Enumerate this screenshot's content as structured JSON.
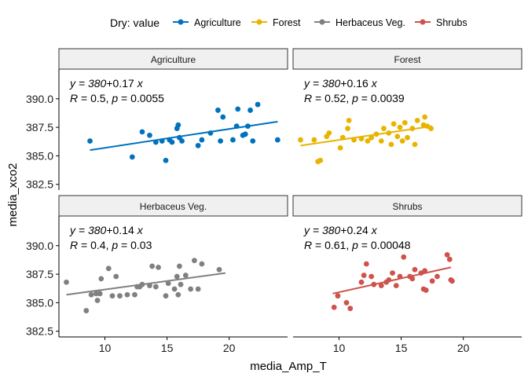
{
  "legend": {
    "title": "Dry: value",
    "placement": "top",
    "entries": [
      {
        "label": "Agriculture",
        "color": "#0072BD"
      },
      {
        "label": "Forest",
        "color": "#E8B400"
      },
      {
        "label": "Herbaceus Veg.",
        "color": "#808080"
      },
      {
        "label": "Shrubs",
        "color": "#CD534C"
      }
    ]
  },
  "chart_data": {
    "type": "scatter",
    "xlabel": "media_Amp_T",
    "ylabel": "media_xco2",
    "xlim": [
      6.3,
      24.7
    ],
    "ylim": [
      382.0,
      392.6
    ],
    "xticks": [
      "10",
      "15",
      "20"
    ],
    "yticks": [
      "382.5",
      "385.0",
      "387.5",
      "390.0"
    ],
    "grid": false,
    "facet_layout": "2x2",
    "facets": [
      {
        "name": "Agriculture",
        "color": "#0072BD",
        "equation": {
          "lead": "y = 380",
          "coef": "0.17",
          "var": "x"
        },
        "stats": {
          "r": "0.5",
          "p": "0.0055"
        },
        "fit": {
          "x": [
            8.8,
            23.9
          ],
          "y": [
            385.5,
            388.0
          ]
        },
        "points": [
          [
            8.8,
            386.3
          ],
          [
            12.2,
            384.9
          ],
          [
            13.0,
            387.1
          ],
          [
            13.6,
            386.8
          ],
          [
            14.1,
            386.2
          ],
          [
            14.6,
            386.3
          ],
          [
            14.9,
            384.6
          ],
          [
            15.2,
            386.4
          ],
          [
            15.4,
            386.2
          ],
          [
            15.8,
            387.4
          ],
          [
            15.9,
            387.7
          ],
          [
            16.0,
            386.6
          ],
          [
            16.2,
            386.3
          ],
          [
            17.5,
            385.9
          ],
          [
            17.8,
            386.4
          ],
          [
            18.5,
            387.0
          ],
          [
            19.1,
            389.0
          ],
          [
            19.3,
            386.3
          ],
          [
            19.5,
            388.4
          ],
          [
            20.3,
            386.4
          ],
          [
            20.6,
            387.6
          ],
          [
            20.7,
            389.1
          ],
          [
            21.1,
            386.8
          ],
          [
            21.3,
            386.9
          ],
          [
            21.5,
            387.6
          ],
          [
            21.7,
            389.0
          ],
          [
            21.9,
            386.3
          ],
          [
            22.3,
            389.5
          ],
          [
            23.9,
            386.4
          ]
        ]
      },
      {
        "name": "Forest",
        "color": "#E8B400",
        "equation": {
          "lead": "y = 380",
          "coef": "0.16",
          "var": "x"
        },
        "stats": {
          "r": "0.52",
          "p": "0.0039"
        },
        "fit": {
          "x": [
            6.9,
            17.5
          ],
          "y": [
            385.9,
            387.6
          ]
        },
        "points": [
          [
            6.9,
            386.4
          ],
          [
            8.0,
            386.4
          ],
          [
            8.3,
            384.5
          ],
          [
            8.5,
            384.6
          ],
          [
            9.0,
            386.7
          ],
          [
            9.2,
            387.0
          ],
          [
            10.1,
            385.7
          ],
          [
            10.3,
            386.6
          ],
          [
            10.7,
            387.4
          ],
          [
            10.8,
            388.1
          ],
          [
            11.2,
            386.4
          ],
          [
            11.8,
            386.5
          ],
          [
            12.3,
            386.3
          ],
          [
            12.6,
            386.6
          ],
          [
            13.0,
            386.9
          ],
          [
            13.4,
            386.3
          ],
          [
            13.6,
            387.4
          ],
          [
            14.0,
            387.0
          ],
          [
            14.2,
            386.0
          ],
          [
            14.4,
            387.8
          ],
          [
            14.7,
            386.7
          ],
          [
            14.9,
            387.5
          ],
          [
            15.1,
            386.3
          ],
          [
            15.3,
            387.9
          ],
          [
            15.5,
            386.6
          ],
          [
            15.9,
            387.4
          ],
          [
            16.1,
            386.0
          ],
          [
            16.3,
            388.1
          ],
          [
            16.8,
            387.7
          ],
          [
            16.9,
            388.4
          ],
          [
            17.1,
            387.6
          ],
          [
            17.4,
            387.4
          ]
        ]
      },
      {
        "name": "Herbaceus Veg.",
        "color": "#808080",
        "equation": {
          "lead": "y = 380",
          "coef": "0.14",
          "var": "x"
        },
        "stats": {
          "r": "0.4",
          "p": "0.03"
        },
        "fit": {
          "x": [
            6.9,
            19.7
          ],
          "y": [
            385.7,
            387.6
          ]
        },
        "points": [
          [
            6.9,
            386.8
          ],
          [
            8.5,
            384.3
          ],
          [
            8.9,
            385.7
          ],
          [
            9.3,
            385.8
          ],
          [
            9.4,
            385.2
          ],
          [
            9.6,
            385.8
          ],
          [
            9.7,
            387.1
          ],
          [
            10.3,
            388.0
          ],
          [
            10.6,
            385.6
          ],
          [
            10.9,
            387.3
          ],
          [
            11.2,
            385.6
          ],
          [
            11.8,
            385.7
          ],
          [
            12.4,
            385.7
          ],
          [
            12.6,
            386.4
          ],
          [
            12.8,
            386.4
          ],
          [
            13.0,
            386.6
          ],
          [
            13.6,
            386.5
          ],
          [
            13.8,
            388.2
          ],
          [
            14.1,
            386.4
          ],
          [
            14.3,
            388.1
          ],
          [
            14.9,
            385.6
          ],
          [
            15.1,
            386.7
          ],
          [
            15.6,
            386.2
          ],
          [
            15.8,
            387.3
          ],
          [
            15.9,
            385.7
          ],
          [
            16.0,
            388.2
          ],
          [
            16.1,
            386.6
          ],
          [
            16.5,
            387.4
          ],
          [
            16.9,
            386.2
          ],
          [
            17.2,
            388.7
          ],
          [
            17.5,
            386.2
          ],
          [
            17.8,
            388.4
          ],
          [
            19.2,
            387.9
          ]
        ]
      },
      {
        "name": "Shrubs",
        "color": "#CD534C",
        "equation": {
          "lead": "y = 380",
          "coef": "0.24",
          "var": "x"
        },
        "stats": {
          "r": "0.61",
          "p": "0.00048"
        },
        "fit": {
          "x": [
            9.5,
            19.0
          ],
          "y": [
            385.8,
            388.1
          ]
        },
        "points": [
          [
            9.6,
            384.6
          ],
          [
            9.9,
            385.6
          ],
          [
            10.6,
            385.0
          ],
          [
            10.9,
            384.5
          ],
          [
            11.8,
            386.8
          ],
          [
            12.0,
            387.4
          ],
          [
            12.2,
            388.4
          ],
          [
            12.6,
            387.3
          ],
          [
            12.8,
            386.6
          ],
          [
            13.4,
            386.5
          ],
          [
            13.8,
            386.8
          ],
          [
            14.0,
            387.0
          ],
          [
            14.3,
            387.6
          ],
          [
            14.6,
            386.5
          ],
          [
            14.9,
            387.3
          ],
          [
            15.2,
            389.0
          ],
          [
            15.7,
            387.3
          ],
          [
            15.9,
            387.1
          ],
          [
            16.1,
            387.9
          ],
          [
            16.6,
            387.6
          ],
          [
            16.8,
            386.2
          ],
          [
            16.9,
            387.8
          ],
          [
            17.0,
            386.1
          ],
          [
            17.5,
            386.9
          ],
          [
            17.9,
            387.3
          ],
          [
            18.7,
            389.2
          ],
          [
            18.9,
            388.8
          ],
          [
            19.0,
            387.0
          ],
          [
            19.1,
            386.9
          ]
        ]
      }
    ]
  }
}
